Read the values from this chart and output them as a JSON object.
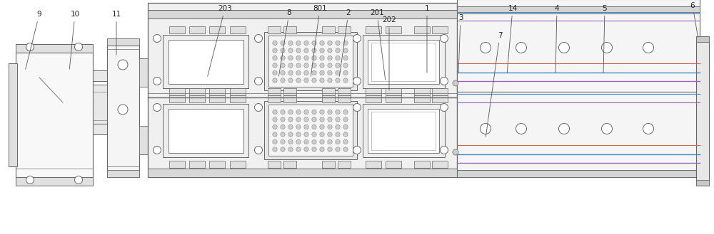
{
  "bg_color": "#ffffff",
  "lc": "#666666",
  "fc_main": "#f5f5f5",
  "fc_gray": "#e8e8e8",
  "fc_dark": "#d0d0d0",
  "fc_white": "#ffffff",
  "fc_inner": "#eeeeee",
  "figsize": [
    10.0,
    3.29
  ],
  "dpi": 100,
  "annotations": [
    [
      "9",
      55,
      20,
      35,
      100
    ],
    [
      "10",
      105,
      20,
      97,
      100
    ],
    [
      "11",
      163,
      20,
      163,
      80
    ],
    [
      "203",
      315,
      12,
      290,
      110
    ],
    [
      "8",
      405,
      18,
      390,
      110
    ],
    [
      "801",
      448,
      12,
      435,
      110
    ],
    [
      "2",
      488,
      18,
      475,
      110
    ],
    [
      "201",
      528,
      18,
      540,
      115
    ],
    [
      "202",
      545,
      28,
      545,
      130
    ],
    [
      "1",
      598,
      12,
      598,
      105
    ],
    [
      "3",
      645,
      25,
      642,
      105
    ],
    [
      "14",
      718,
      12,
      710,
      105
    ],
    [
      "7",
      700,
      50,
      680,
      195
    ],
    [
      "4",
      780,
      12,
      778,
      105
    ],
    [
      "5",
      847,
      12,
      845,
      105
    ],
    [
      "6",
      970,
      8,
      978,
      55
    ]
  ]
}
